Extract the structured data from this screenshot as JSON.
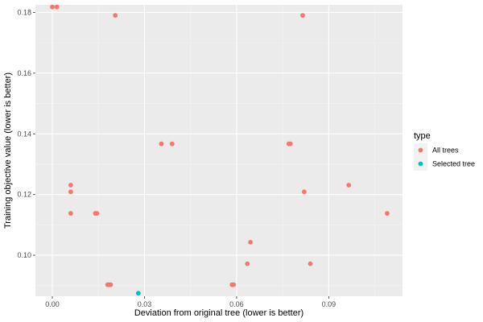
{
  "chart_data": {
    "type": "scatter",
    "title": "",
    "xlabel": "Deviation from original tree (lower is better)",
    "ylabel": "Training objective value (lower is better)",
    "xlim": [
      -0.0055,
      0.114
    ],
    "ylim": [
      0.0865,
      0.1825
    ],
    "x_ticks": [
      0.0,
      0.03,
      0.06,
      0.09
    ],
    "x_tick_labels": [
      "0.00",
      "0.03",
      "0.06",
      "0.09"
    ],
    "y_ticks": [
      0.1,
      0.12,
      0.14,
      0.16,
      0.18
    ],
    "y_tick_labels": [
      "0.10",
      "0.12",
      "0.14",
      "0.16",
      "0.18"
    ],
    "grid": true,
    "legend": {
      "title": "type",
      "position": "right",
      "entries": [
        {
          "label": "All trees",
          "color": "#F8766D"
        },
        {
          "label": "Selected tree",
          "color": "#00BFC4"
        }
      ]
    },
    "series": [
      {
        "name": "All trees",
        "color": "#F8766D",
        "points": [
          {
            "x": 0.0,
            "y": 0.1818
          },
          {
            "x": 0.0015,
            "y": 0.1818
          },
          {
            "x": 0.0205,
            "y": 0.179
          },
          {
            "x": 0.0815,
            "y": 0.179
          },
          {
            "x": 0.0355,
            "y": 0.1367
          },
          {
            "x": 0.039,
            "y": 0.1367
          },
          {
            "x": 0.077,
            "y": 0.1367
          },
          {
            "x": 0.0775,
            "y": 0.1367
          },
          {
            "x": 0.006,
            "y": 0.1231
          },
          {
            "x": 0.006,
            "y": 0.1209
          },
          {
            "x": 0.006,
            "y": 0.1138
          },
          {
            "x": 0.014,
            "y": 0.1138
          },
          {
            "x": 0.0145,
            "y": 0.1138
          },
          {
            "x": 0.0965,
            "y": 0.1231
          },
          {
            "x": 0.082,
            "y": 0.1209
          },
          {
            "x": 0.109,
            "y": 0.1138
          },
          {
            "x": 0.0645,
            "y": 0.1043
          },
          {
            "x": 0.0635,
            "y": 0.0972
          },
          {
            "x": 0.084,
            "y": 0.0972
          },
          {
            "x": 0.018,
            "y": 0.0903
          },
          {
            "x": 0.0185,
            "y": 0.0903
          },
          {
            "x": 0.019,
            "y": 0.0903
          },
          {
            "x": 0.0585,
            "y": 0.0903
          },
          {
            "x": 0.059,
            "y": 0.0903
          }
        ]
      },
      {
        "name": "Selected tree",
        "color": "#00BFC4",
        "points": [
          {
            "x": 0.028,
            "y": 0.0875
          }
        ]
      }
    ]
  }
}
